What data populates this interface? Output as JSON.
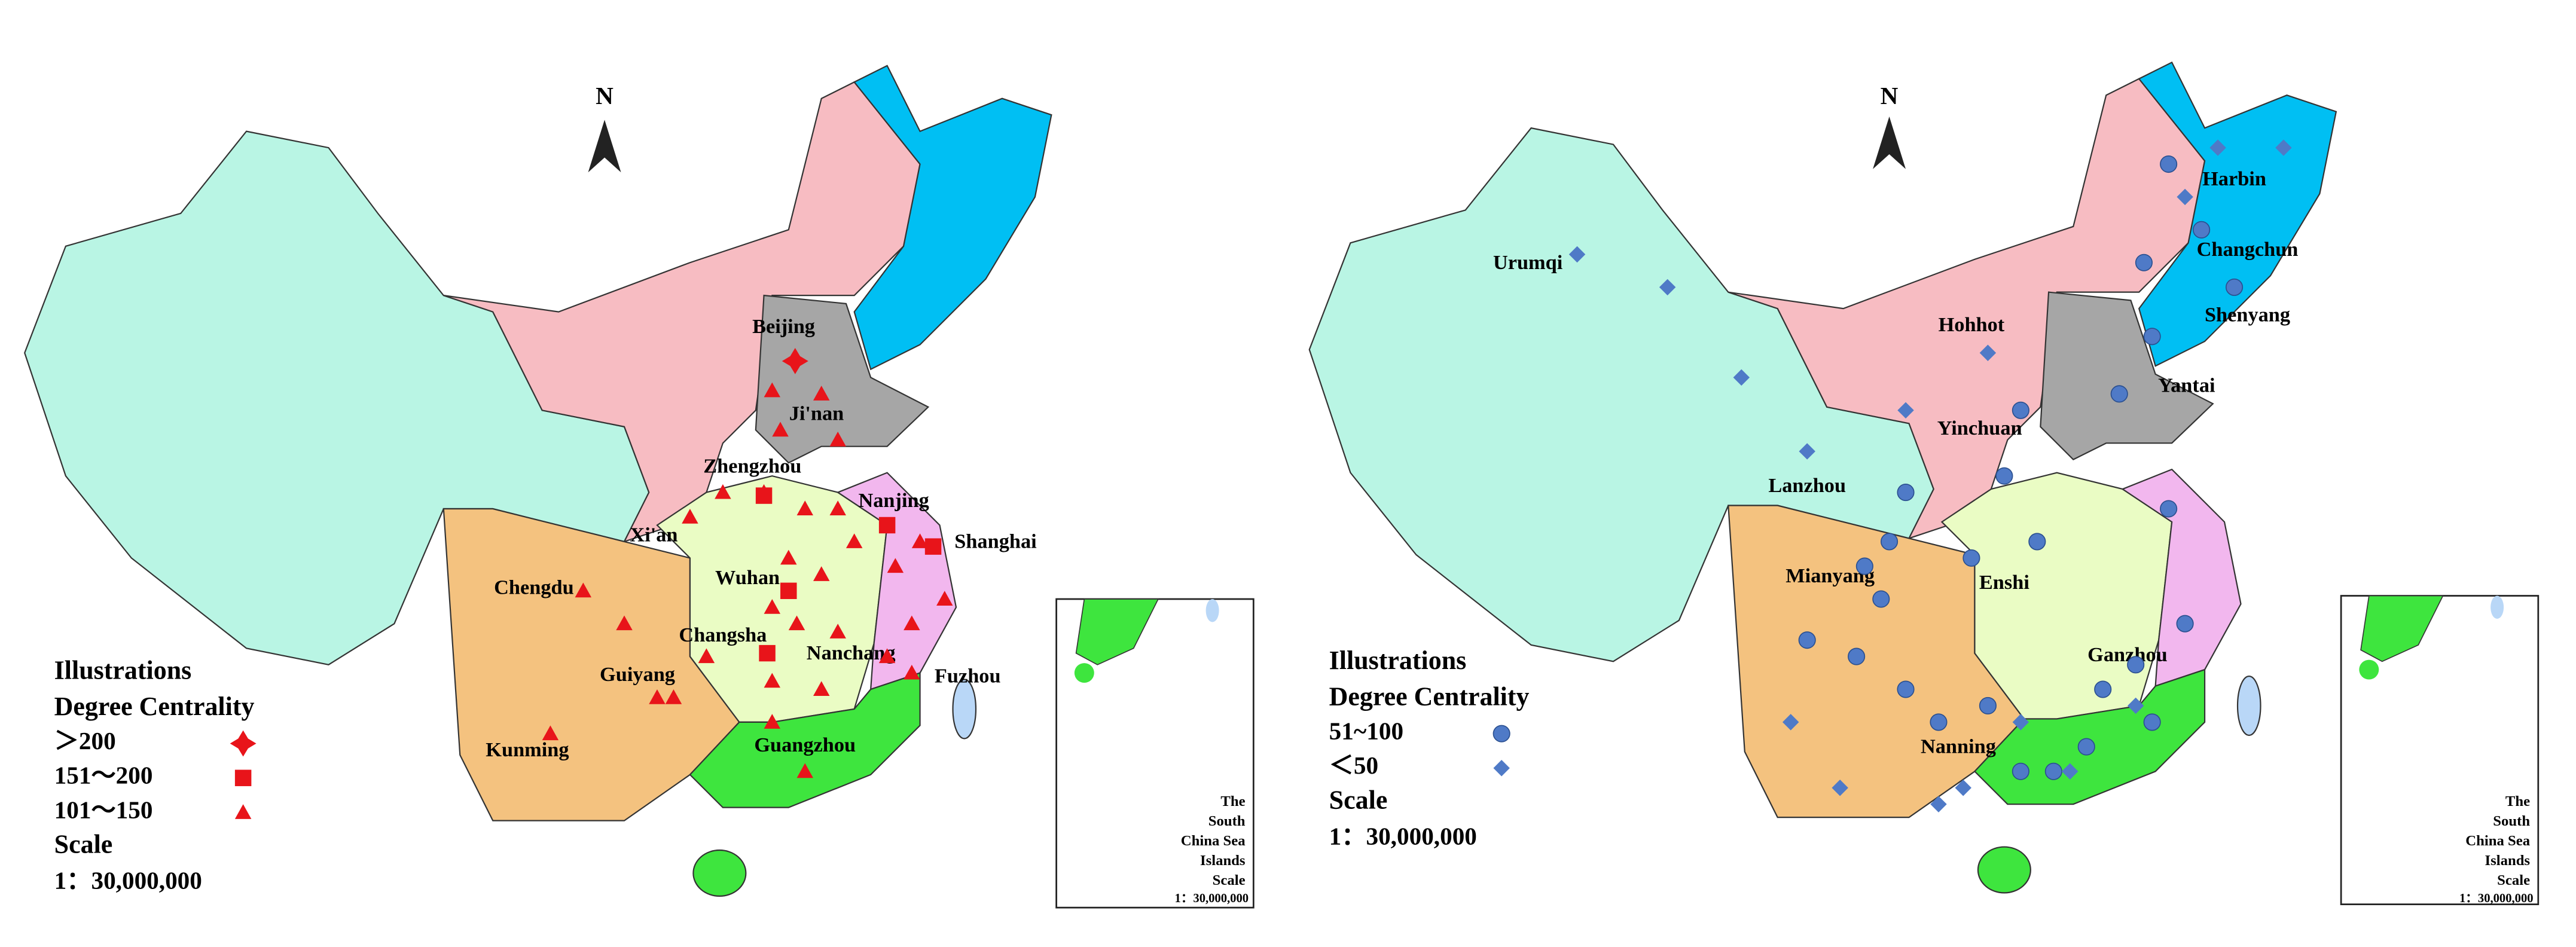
{
  "left_map": {
    "north": "N",
    "cities": [
      "Beijing",
      "Ji'nan",
      "Zhengzhou",
      "Nanjing",
      "Shanghai",
      "Xi'an",
      "Wuhan",
      "Chengdu",
      "Changsha",
      "Nanchang",
      "Fuzhou",
      "Guiyang",
      "Kunming",
      "Guangzhou"
    ],
    "legend": {
      "title": "Illustrations",
      "subtitle": "Degree Centrality",
      "classes": [
        "＞200",
        "151～200",
        "101～150"
      ],
      "scale_title": "Scale",
      "scale": "1：30,000,000"
    },
    "inset": {
      "lines": [
        "The",
        "South",
        "China Sea",
        "Islands",
        "Scale"
      ],
      "scale": "1：30,000,000"
    }
  },
  "right_map": {
    "north": "N",
    "cities": [
      "Urumqi",
      "Harbin",
      "Changchun",
      "Hohhot",
      "Shenyang",
      "Yantai",
      "Yinchuan",
      "Lanzhou",
      "Mianyang",
      "Enshi",
      "Ganzhou",
      "Nanning"
    ],
    "legend": {
      "title": "Illustrations",
      "subtitle": "Degree Centrality",
      "classes": [
        "51~100",
        "＜50"
      ],
      "scale_title": "Scale",
      "scale": "1：30,000,000"
    },
    "inset": {
      "lines": [
        "The",
        "South",
        "China Sea",
        "Islands",
        "Scale"
      ],
      "scale": "1：30,000,000"
    }
  }
}
